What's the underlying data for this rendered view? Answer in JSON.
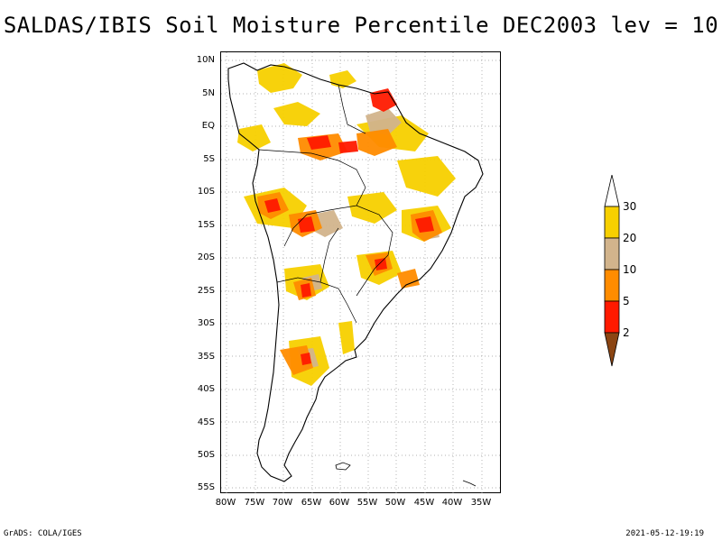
{
  "title": "SALDAS/IBIS Soil Moisture Percentile DEC2003 lev = 10",
  "lat_labels": [
    "10N",
    "5N",
    "EQ",
    "5S",
    "10S",
    "15S",
    "20S",
    "25S",
    "30S",
    "35S",
    "40S",
    "45S",
    "50S",
    "55S"
  ],
  "lon_labels": [
    "80W",
    "75W",
    "70W",
    "65W",
    "60W",
    "55W",
    "50W",
    "45W",
    "40W",
    "35W"
  ],
  "colorbar": {
    "labels": [
      "30",
      "20",
      "10",
      "5",
      "2"
    ],
    "colors": {
      "above_30": "#ffffff",
      "20_30": "#f7d000",
      "10_20": "#d2b48c",
      "5_10": "#ff8c00",
      "2_5": "#ff1a00",
      "below_2": "#8b4513"
    }
  },
  "footer": {
    "left": "GrADS: COLA/IGES",
    "right": "2021-05-12-19:19"
  }
}
